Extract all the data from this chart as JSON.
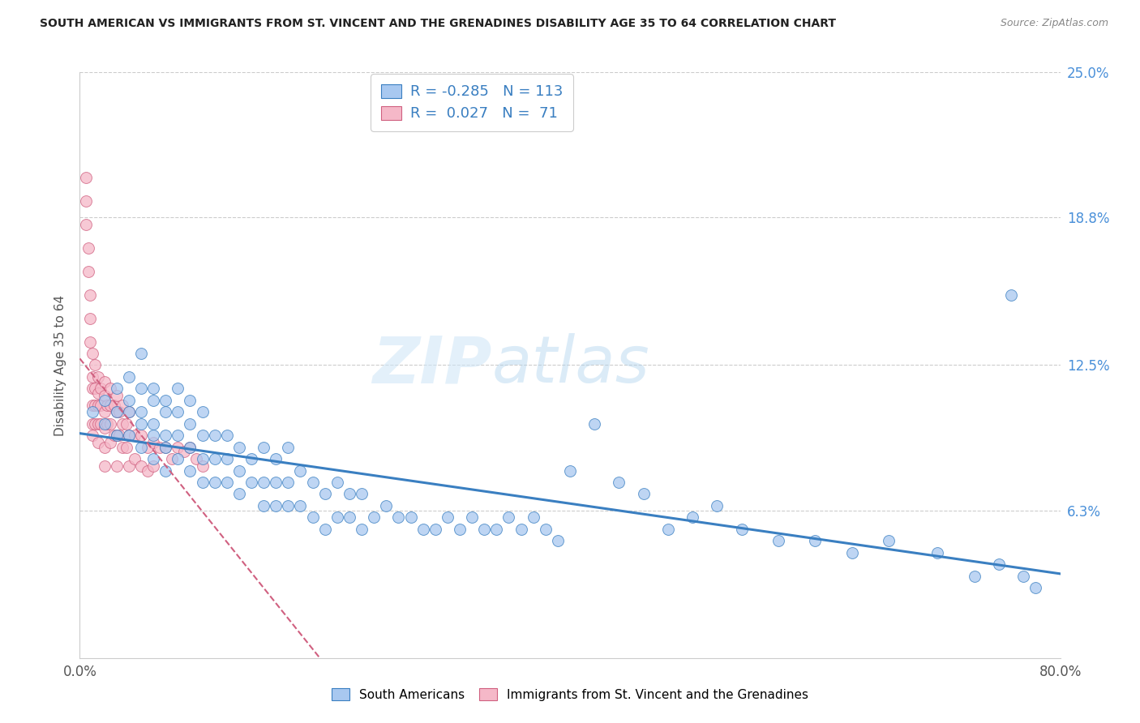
{
  "title": "SOUTH AMERICAN VS IMMIGRANTS FROM ST. VINCENT AND THE GRENADINES DISABILITY AGE 35 TO 64 CORRELATION CHART",
  "source": "Source: ZipAtlas.com",
  "ylabel": "Disability Age 35 to 64",
  "xlim": [
    0.0,
    0.8
  ],
  "ylim": [
    0.0,
    0.25
  ],
  "blue_R": -0.285,
  "blue_N": 113,
  "pink_R": 0.027,
  "pink_N": 71,
  "blue_color": "#a8c8f0",
  "pink_color": "#f5b8c8",
  "blue_line_color": "#3a7fc1",
  "pink_line_color": "#d06080",
  "watermark_zip": "ZIP",
  "watermark_atlas": "atlas",
  "blue_scatter_x": [
    0.01,
    0.02,
    0.02,
    0.03,
    0.03,
    0.03,
    0.04,
    0.04,
    0.04,
    0.04,
    0.05,
    0.05,
    0.05,
    0.05,
    0.05,
    0.06,
    0.06,
    0.06,
    0.06,
    0.06,
    0.07,
    0.07,
    0.07,
    0.07,
    0.07,
    0.08,
    0.08,
    0.08,
    0.08,
    0.09,
    0.09,
    0.09,
    0.09,
    0.1,
    0.1,
    0.1,
    0.1,
    0.11,
    0.11,
    0.11,
    0.12,
    0.12,
    0.12,
    0.13,
    0.13,
    0.13,
    0.14,
    0.14,
    0.15,
    0.15,
    0.15,
    0.16,
    0.16,
    0.16,
    0.17,
    0.17,
    0.17,
    0.18,
    0.18,
    0.19,
    0.19,
    0.2,
    0.2,
    0.21,
    0.21,
    0.22,
    0.22,
    0.23,
    0.23,
    0.24,
    0.25,
    0.26,
    0.27,
    0.28,
    0.29,
    0.3,
    0.31,
    0.32,
    0.33,
    0.34,
    0.35,
    0.36,
    0.37,
    0.38,
    0.39,
    0.4,
    0.42,
    0.44,
    0.46,
    0.48,
    0.5,
    0.52,
    0.54,
    0.57,
    0.6,
    0.63,
    0.66,
    0.7,
    0.73,
    0.75,
    0.76,
    0.77,
    0.78
  ],
  "blue_scatter_y": [
    0.105,
    0.1,
    0.11,
    0.095,
    0.105,
    0.115,
    0.095,
    0.105,
    0.11,
    0.12,
    0.09,
    0.1,
    0.105,
    0.115,
    0.13,
    0.085,
    0.095,
    0.1,
    0.11,
    0.115,
    0.08,
    0.09,
    0.095,
    0.105,
    0.11,
    0.085,
    0.095,
    0.105,
    0.115,
    0.08,
    0.09,
    0.1,
    0.11,
    0.075,
    0.085,
    0.095,
    0.105,
    0.075,
    0.085,
    0.095,
    0.075,
    0.085,
    0.095,
    0.07,
    0.08,
    0.09,
    0.075,
    0.085,
    0.065,
    0.075,
    0.09,
    0.065,
    0.075,
    0.085,
    0.065,
    0.075,
    0.09,
    0.065,
    0.08,
    0.06,
    0.075,
    0.055,
    0.07,
    0.06,
    0.075,
    0.06,
    0.07,
    0.055,
    0.07,
    0.06,
    0.065,
    0.06,
    0.06,
    0.055,
    0.055,
    0.06,
    0.055,
    0.06,
    0.055,
    0.055,
    0.06,
    0.055,
    0.06,
    0.055,
    0.05,
    0.08,
    0.1,
    0.075,
    0.07,
    0.055,
    0.06,
    0.065,
    0.055,
    0.05,
    0.05,
    0.045,
    0.05,
    0.045,
    0.035,
    0.04,
    0.155,
    0.035,
    0.03
  ],
  "pink_scatter_x": [
    0.005,
    0.005,
    0.005,
    0.007,
    0.007,
    0.008,
    0.008,
    0.008,
    0.01,
    0.01,
    0.01,
    0.01,
    0.01,
    0.01,
    0.012,
    0.012,
    0.012,
    0.012,
    0.015,
    0.015,
    0.015,
    0.015,
    0.015,
    0.017,
    0.017,
    0.017,
    0.02,
    0.02,
    0.02,
    0.02,
    0.02,
    0.02,
    0.022,
    0.022,
    0.025,
    0.025,
    0.025,
    0.025,
    0.028,
    0.028,
    0.03,
    0.03,
    0.03,
    0.03,
    0.032,
    0.032,
    0.035,
    0.035,
    0.035,
    0.038,
    0.038,
    0.04,
    0.04,
    0.04,
    0.045,
    0.045,
    0.05,
    0.05,
    0.055,
    0.055,
    0.06,
    0.06,
    0.065,
    0.07,
    0.075,
    0.08,
    0.085,
    0.09,
    0.095,
    0.1
  ],
  "pink_scatter_y": [
    0.205,
    0.195,
    0.185,
    0.175,
    0.165,
    0.155,
    0.145,
    0.135,
    0.13,
    0.12,
    0.115,
    0.108,
    0.1,
    0.095,
    0.125,
    0.115,
    0.108,
    0.1,
    0.12,
    0.113,
    0.108,
    0.1,
    0.092,
    0.115,
    0.108,
    0.1,
    0.118,
    0.112,
    0.105,
    0.098,
    0.09,
    0.082,
    0.108,
    0.1,
    0.115,
    0.108,
    0.1,
    0.092,
    0.108,
    0.095,
    0.112,
    0.105,
    0.095,
    0.082,
    0.105,
    0.095,
    0.108,
    0.1,
    0.09,
    0.1,
    0.09,
    0.105,
    0.095,
    0.082,
    0.095,
    0.085,
    0.095,
    0.082,
    0.09,
    0.08,
    0.092,
    0.082,
    0.09,
    0.09,
    0.085,
    0.09,
    0.088,
    0.09,
    0.085,
    0.082
  ]
}
